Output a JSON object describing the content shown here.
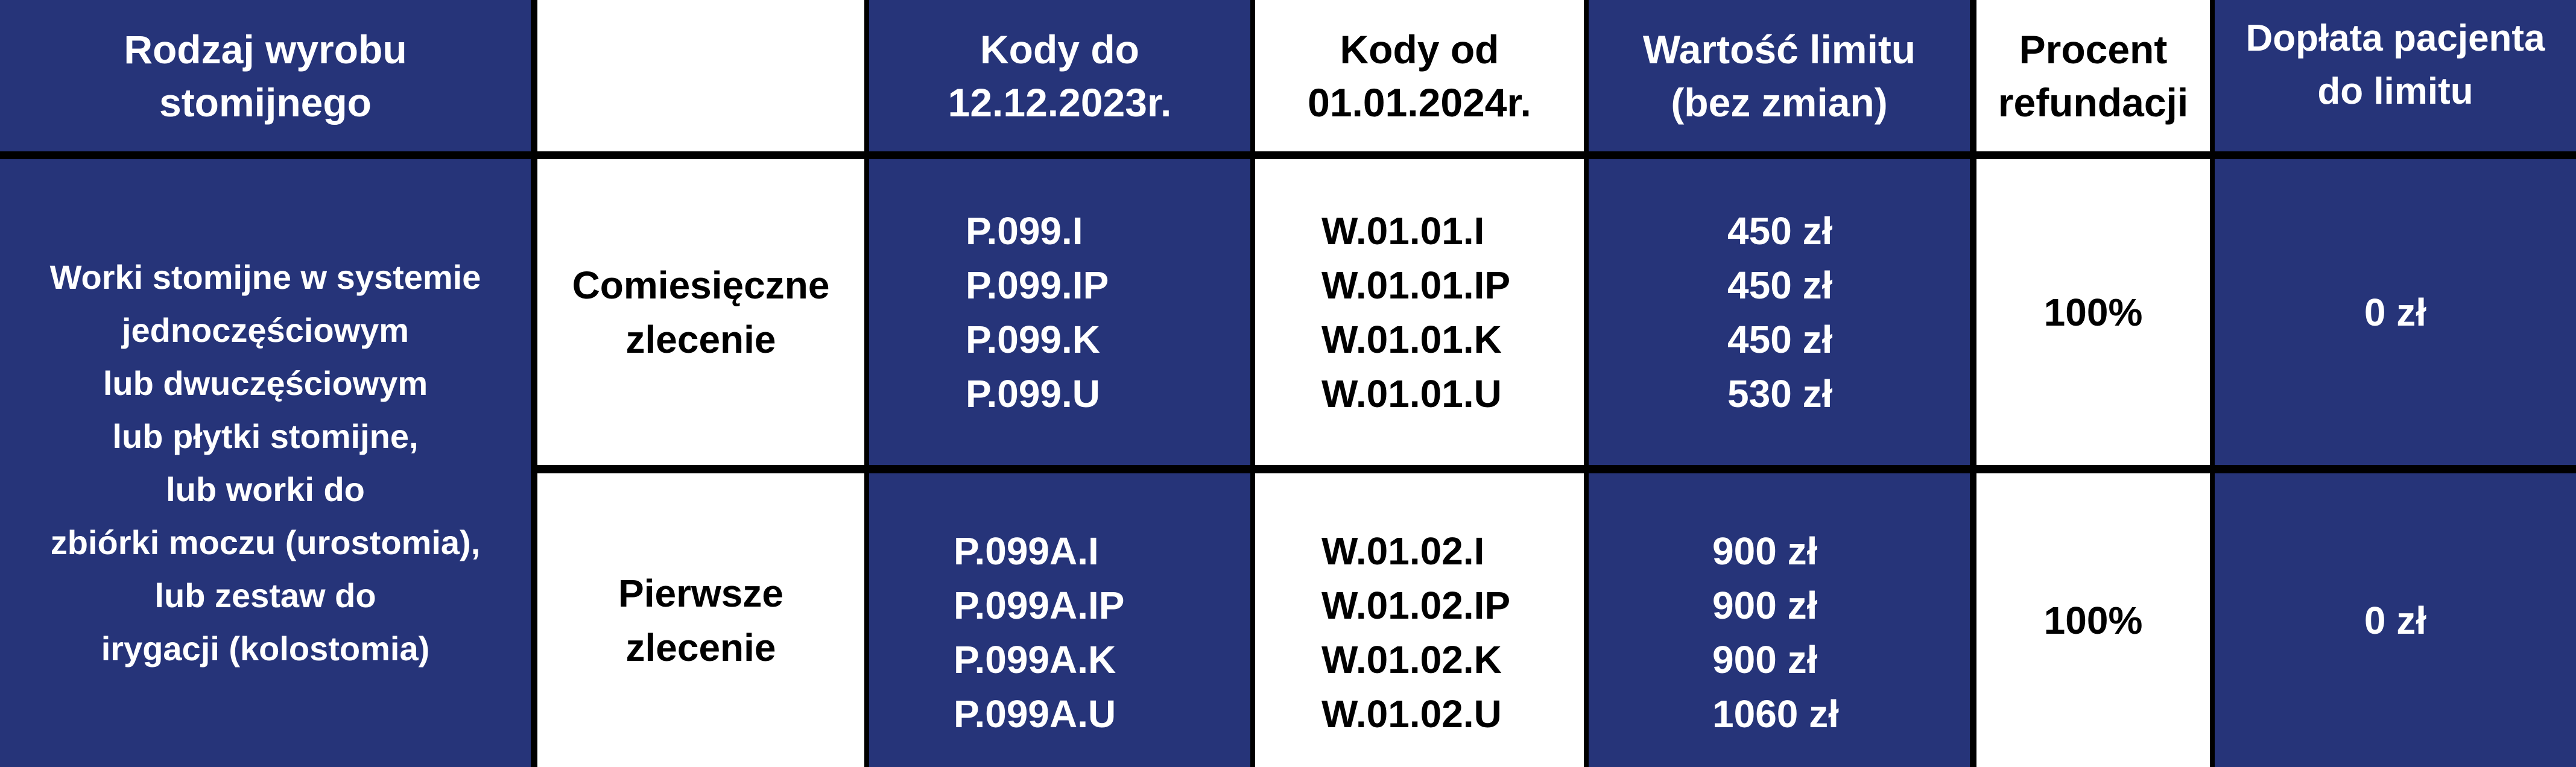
{
  "header": {
    "col1": [
      "Rodzaj wyrobu",
      "stomijnego"
    ],
    "col2": "",
    "col3": [
      "Kody do",
      "12.12.2023r."
    ],
    "col4": [
      "Kody od",
      "01.01.2024r."
    ],
    "col5": [
      "Wartość limitu",
      "(bez zmian)"
    ],
    "col6": [
      "Procent",
      "refundacji"
    ],
    "col7": [
      "Dopłata pacjenta",
      "do limitu"
    ]
  },
  "product": [
    "Worki stomijne w systemie",
    "jednoczęściowym",
    "lub dwuczęściowym",
    "lub płytki stomijne,",
    "lub worki do",
    "zbiórki moczu (urostomia),",
    "lub zestaw do",
    "irygacji (kolostomia)"
  ],
  "rows": [
    {
      "order_type": [
        "Comiesięczne",
        "zlecenie"
      ],
      "old_codes": [
        "P.099.I",
        "P.099.IP",
        "P.099.K",
        "P.099.U"
      ],
      "new_codes": [
        "W.01.01.I",
        "W.01.01.IP",
        "W.01.01.K",
        "W.01.01.U"
      ],
      "limits": [
        "450 zł",
        "450 zł",
        "450 zł",
        "530 zł"
      ],
      "refund": "100%",
      "copay": "0 zł"
    },
    {
      "order_type": [
        "Pierwsze",
        "zlecenie"
      ],
      "old_codes": [
        "P.099A.I",
        "P.099A.IP",
        "P.099A.K",
        "P.099A.U"
      ],
      "new_codes": [
        "W.01.02.I",
        "W.01.02.IP",
        "W.01.02.K",
        "W.01.02.U"
      ],
      "limits": [
        "900 zł",
        "900 zł",
        "900 zł",
        "1060 zł"
      ],
      "refund": "100%",
      "copay": "0 zł"
    }
  ],
  "colors": {
    "navy": "#263479",
    "white": "#ffffff",
    "border": "#000000"
  }
}
